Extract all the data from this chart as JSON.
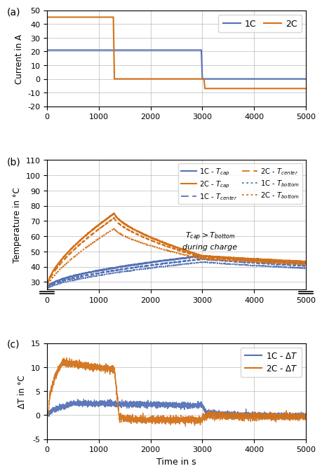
{
  "blue": "#5572B5",
  "orange": "#D4721A",
  "fig_size": [
    4.61,
    6.8
  ],
  "dpi": 100,
  "panel_a": {
    "label": "(a)",
    "ylabel": "Current in A",
    "ylim": [
      -20,
      50
    ],
    "yticks": [
      -20,
      -10,
      0,
      10,
      20,
      30,
      40,
      50
    ],
    "xlim": [
      0,
      5000
    ],
    "xticks": [
      0,
      1000,
      2000,
      3000,
      4000,
      5000
    ]
  },
  "panel_b": {
    "label": "(b)",
    "ylabel": "Temperature in °C",
    "ylim": [
      25,
      110
    ],
    "yticks": [
      30,
      40,
      50,
      60,
      70,
      80,
      90,
      100,
      110
    ],
    "xlim": [
      0,
      5000
    ],
    "xticks": [
      0,
      1000,
      2000,
      3000,
      4000,
      5000
    ]
  },
  "panel_c": {
    "label": "(c)",
    "ylabel": "ΔT in °C",
    "xlabel": "Time in s",
    "ylim": [
      -5,
      15
    ],
    "yticks": [
      -5,
      0,
      5,
      10,
      15
    ],
    "xlim": [
      0,
      5000
    ],
    "xticks": [
      0,
      1000,
      2000,
      3000,
      4000,
      5000
    ]
  }
}
